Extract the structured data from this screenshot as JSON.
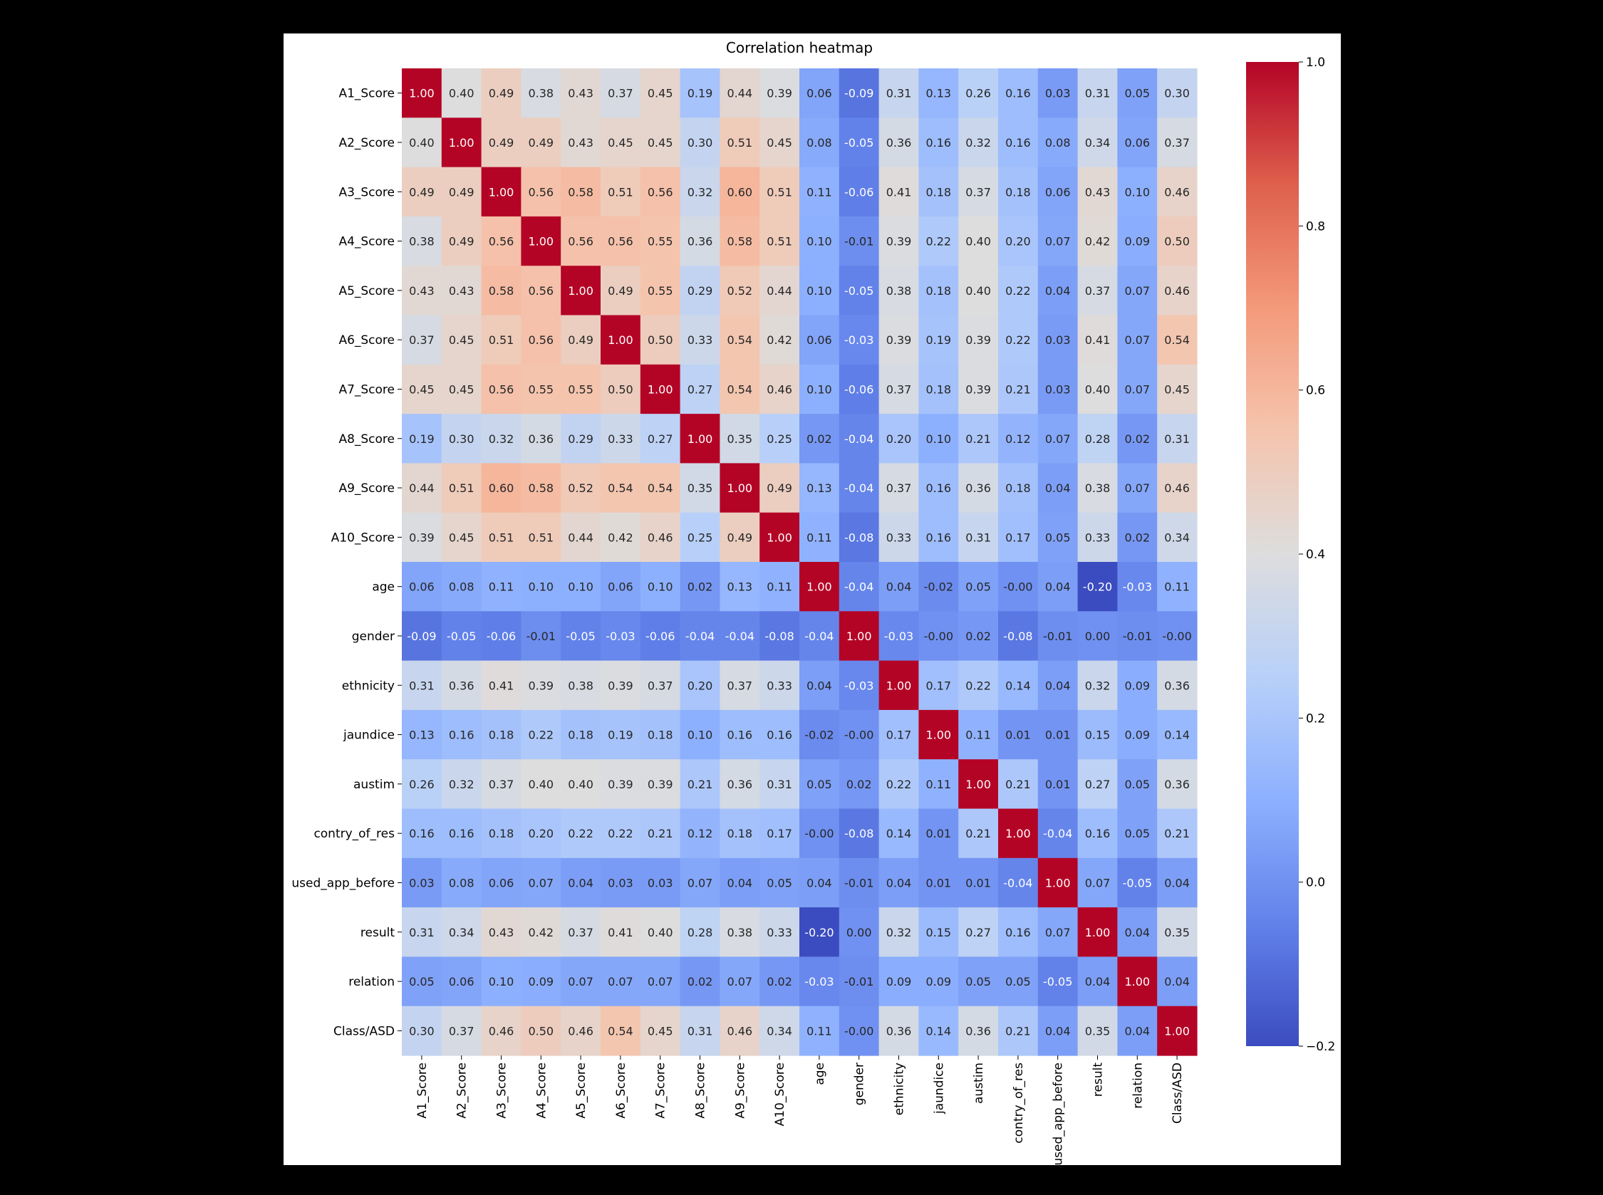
{
  "chart_data": {
    "type": "heatmap",
    "title": "Correlation heatmap",
    "colormap": "coolwarm",
    "vmin": -0.2,
    "vmax": 1.0,
    "colorbar_ticks": [
      -0.2,
      0.0,
      0.2,
      0.4,
      0.6,
      0.8,
      1.0
    ],
    "colorbar_tick_labels": [
      "−0.2",
      "0.0",
      "0.2",
      "0.4",
      "0.6",
      "0.8",
      "1.0"
    ],
    "labels": [
      "A1_Score",
      "A2_Score",
      "A3_Score",
      "A4_Score",
      "A5_Score",
      "A6_Score",
      "A7_Score",
      "A8_Score",
      "A9_Score",
      "A10_Score",
      "age",
      "gender",
      "ethnicity",
      "jaundice",
      "austim",
      "contry_of_res",
      "used_app_before",
      "result",
      "relation",
      "Class/ASD"
    ],
    "annotations": [
      [
        "1.00",
        "0.40",
        "0.49",
        "0.38",
        "0.43",
        "0.37",
        "0.45",
        "0.19",
        "0.44",
        "0.39",
        "0.06",
        "-0.09",
        "0.31",
        "0.13",
        "0.26",
        "0.16",
        "0.03",
        "0.31",
        "0.05",
        "0.30"
      ],
      [
        "0.40",
        "1.00",
        "0.49",
        "0.49",
        "0.43",
        "0.45",
        "0.45",
        "0.30",
        "0.51",
        "0.45",
        "0.08",
        "-0.05",
        "0.36",
        "0.16",
        "0.32",
        "0.16",
        "0.08",
        "0.34",
        "0.06",
        "0.37"
      ],
      [
        "0.49",
        "0.49",
        "1.00",
        "0.56",
        "0.58",
        "0.51",
        "0.56",
        "0.32",
        "0.60",
        "0.51",
        "0.11",
        "-0.06",
        "0.41",
        "0.18",
        "0.37",
        "0.18",
        "0.06",
        "0.43",
        "0.10",
        "0.46"
      ],
      [
        "0.38",
        "0.49",
        "0.56",
        "1.00",
        "0.56",
        "0.56",
        "0.55",
        "0.36",
        "0.58",
        "0.51",
        "0.10",
        "-0.01",
        "0.39",
        "0.22",
        "0.40",
        "0.20",
        "0.07",
        "0.42",
        "0.09",
        "0.50"
      ],
      [
        "0.43",
        "0.43",
        "0.58",
        "0.56",
        "1.00",
        "0.49",
        "0.55",
        "0.29",
        "0.52",
        "0.44",
        "0.10",
        "-0.05",
        "0.38",
        "0.18",
        "0.40",
        "0.22",
        "0.04",
        "0.37",
        "0.07",
        "0.46"
      ],
      [
        "0.37",
        "0.45",
        "0.51",
        "0.56",
        "0.49",
        "1.00",
        "0.50",
        "0.33",
        "0.54",
        "0.42",
        "0.06",
        "-0.03",
        "0.39",
        "0.19",
        "0.39",
        "0.22",
        "0.03",
        "0.41",
        "0.07",
        "0.54"
      ],
      [
        "0.45",
        "0.45",
        "0.56",
        "0.55",
        "0.55",
        "0.50",
        "1.00",
        "0.27",
        "0.54",
        "0.46",
        "0.10",
        "-0.06",
        "0.37",
        "0.18",
        "0.39",
        "0.21",
        "0.03",
        "0.40",
        "0.07",
        "0.45"
      ],
      [
        "0.19",
        "0.30",
        "0.32",
        "0.36",
        "0.29",
        "0.33",
        "0.27",
        "1.00",
        "0.35",
        "0.25",
        "0.02",
        "-0.04",
        "0.20",
        "0.10",
        "0.21",
        "0.12",
        "0.07",
        "0.28",
        "0.02",
        "0.31"
      ],
      [
        "0.44",
        "0.51",
        "0.60",
        "0.58",
        "0.52",
        "0.54",
        "0.54",
        "0.35",
        "1.00",
        "0.49",
        "0.13",
        "-0.04",
        "0.37",
        "0.16",
        "0.36",
        "0.18",
        "0.04",
        "0.38",
        "0.07",
        "0.46"
      ],
      [
        "0.39",
        "0.45",
        "0.51",
        "0.51",
        "0.44",
        "0.42",
        "0.46",
        "0.25",
        "0.49",
        "1.00",
        "0.11",
        "-0.08",
        "0.33",
        "0.16",
        "0.31",
        "0.17",
        "0.05",
        "0.33",
        "0.02",
        "0.34"
      ],
      [
        "0.06",
        "0.08",
        "0.11",
        "0.10",
        "0.10",
        "0.06",
        "0.10",
        "0.02",
        "0.13",
        "0.11",
        "1.00",
        "-0.04",
        "0.04",
        "-0.02",
        "0.05",
        "-0.00",
        "0.04",
        "-0.20",
        "-0.03",
        "0.11"
      ],
      [
        "-0.09",
        "-0.05",
        "-0.06",
        "-0.01",
        "-0.05",
        "-0.03",
        "-0.06",
        "-0.04",
        "-0.04",
        "-0.08",
        "-0.04",
        "1.00",
        "-0.03",
        "-0.00",
        "0.02",
        "-0.08",
        "-0.01",
        "0.00",
        "-0.01",
        "-0.00"
      ],
      [
        "0.31",
        "0.36",
        "0.41",
        "0.39",
        "0.38",
        "0.39",
        "0.37",
        "0.20",
        "0.37",
        "0.33",
        "0.04",
        "-0.03",
        "1.00",
        "0.17",
        "0.22",
        "0.14",
        "0.04",
        "0.32",
        "0.09",
        "0.36"
      ],
      [
        "0.13",
        "0.16",
        "0.18",
        "0.22",
        "0.18",
        "0.19",
        "0.18",
        "0.10",
        "0.16",
        "0.16",
        "-0.02",
        "-0.00",
        "0.17",
        "1.00",
        "0.11",
        "0.01",
        "0.01",
        "0.15",
        "0.09",
        "0.14"
      ],
      [
        "0.26",
        "0.32",
        "0.37",
        "0.40",
        "0.40",
        "0.39",
        "0.39",
        "0.21",
        "0.36",
        "0.31",
        "0.05",
        "0.02",
        "0.22",
        "0.11",
        "1.00",
        "0.21",
        "0.01",
        "0.27",
        "0.05",
        "0.36"
      ],
      [
        "0.16",
        "0.16",
        "0.18",
        "0.20",
        "0.22",
        "0.22",
        "0.21",
        "0.12",
        "0.18",
        "0.17",
        "-0.00",
        "-0.08",
        "0.14",
        "0.01",
        "0.21",
        "1.00",
        "-0.04",
        "0.16",
        "0.05",
        "0.21"
      ],
      [
        "0.03",
        "0.08",
        "0.06",
        "0.07",
        "0.04",
        "0.03",
        "0.03",
        "0.07",
        "0.04",
        "0.05",
        "0.04",
        "-0.01",
        "0.04",
        "0.01",
        "0.01",
        "-0.04",
        "1.00",
        "0.07",
        "-0.05",
        "0.04"
      ],
      [
        "0.31",
        "0.34",
        "0.43",
        "0.42",
        "0.37",
        "0.41",
        "0.40",
        "0.28",
        "0.38",
        "0.33",
        "-0.20",
        "0.00",
        "0.32",
        "0.15",
        "0.27",
        "0.16",
        "0.07",
        "1.00",
        "0.04",
        "0.35"
      ],
      [
        "0.05",
        "0.06",
        "0.10",
        "0.09",
        "0.07",
        "0.07",
        "0.07",
        "0.02",
        "0.07",
        "0.02",
        "-0.03",
        "-0.01",
        "0.09",
        "0.09",
        "0.05",
        "0.05",
        "-0.05",
        "0.04",
        "1.00",
        "0.04"
      ],
      [
        "0.30",
        "0.37",
        "0.46",
        "0.50",
        "0.46",
        "0.54",
        "0.45",
        "0.31",
        "0.46",
        "0.34",
        "0.11",
        "-0.00",
        "0.36",
        "0.14",
        "0.36",
        "0.21",
        "0.04",
        "0.35",
        "0.04",
        "1.00"
      ]
    ]
  }
}
